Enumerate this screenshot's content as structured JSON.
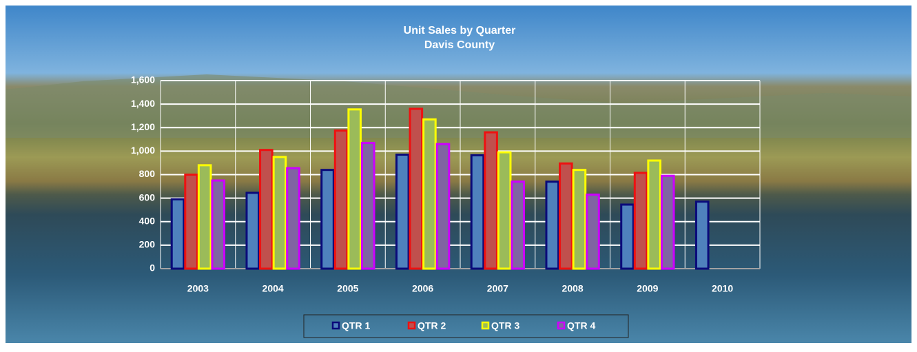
{
  "chart_data": {
    "type": "bar",
    "title": "Unit Sales by Quarter",
    "subtitle": "Davis County",
    "categories": [
      "2003",
      "2004",
      "2005",
      "2006",
      "2007",
      "2008",
      "2009",
      "2010"
    ],
    "series": [
      {
        "name": "QTR 1",
        "color": "#4f81bd",
        "edgecolor": "#0a0a7a",
        "values": [
          590,
          645,
          840,
          970,
          965,
          740,
          545,
          570
        ]
      },
      {
        "name": "QTR 2",
        "color": "#c0504d",
        "edgecolor": "#ee1111",
        "values": [
          800,
          1010,
          1175,
          1360,
          1160,
          895,
          815,
          null
        ]
      },
      {
        "name": "QTR 3",
        "color": "#9bbb59",
        "edgecolor": "#ffff00",
        "values": [
          880,
          950,
          1355,
          1270,
          990,
          840,
          920,
          null
        ]
      },
      {
        "name": "QTR 4",
        "color": "#8064a2",
        "edgecolor": "#cc00ff",
        "values": [
          750,
          855,
          1070,
          1060,
          740,
          630,
          790,
          null
        ]
      }
    ],
    "ylim": [
      0,
      1600
    ],
    "yticks": [
      0,
      200,
      400,
      600,
      800,
      {
        "value": 1000,
        "label": "1,000"
      },
      {
        "value": 1200,
        "label": "1,200"
      },
      {
        "value": 1400,
        "label": "1,400"
      },
      {
        "value": 1600,
        "label": "1,600"
      }
    ],
    "grid": true,
    "legend": "bottom"
  }
}
